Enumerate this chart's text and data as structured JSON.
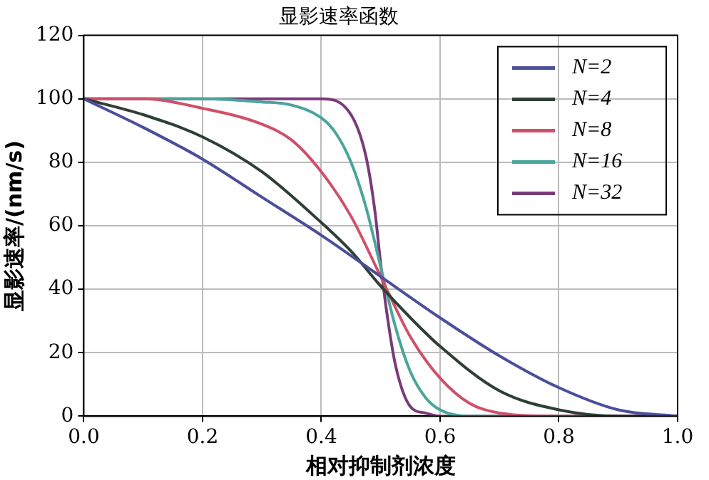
{
  "chart_data": {
    "type": "line",
    "title": "显影速率函数",
    "xlabel": "相对抑制剂浓度",
    "ylabel": "显影速率/(nm/s)",
    "xlim": [
      0,
      1
    ],
    "ylim": [
      0,
      120
    ],
    "xticks": [
      {
        "value": 0,
        "label": "0.0"
      },
      {
        "value": 0.2,
        "label": "0.2"
      },
      {
        "value": 0.4,
        "label": "0.4"
      },
      {
        "value": 0.6,
        "label": "0.6"
      },
      {
        "value": 0.8,
        "label": "0.8"
      },
      {
        "value": 1,
        "label": "1.0"
      }
    ],
    "yticks": [
      0,
      20,
      40,
      60,
      80,
      100,
      120
    ],
    "grid": true,
    "legend": "top right",
    "marker": "none",
    "line_style": "solid",
    "series": [
      {
        "name": "N=2",
        "color": "#4b4f9a",
        "x": [
          0,
          0.1,
          0.2,
          0.3,
          0.4,
          0.5,
          0.6,
          0.7,
          0.8,
          0.9,
          1
        ],
        "values": [
          100,
          91,
          81,
          69,
          57,
          44,
          31,
          19,
          9,
          2,
          0
        ]
      },
      {
        "name": "N=4",
        "color": "#2f3f35",
        "x": [
          0,
          0.1,
          0.2,
          0.3,
          0.4,
          0.45,
          0.5,
          0.55,
          0.6,
          0.7,
          0.8,
          0.9,
          1
        ],
        "values": [
          100,
          95,
          88,
          77,
          61,
          52,
          41,
          31,
          22,
          8,
          2,
          0,
          0
        ]
      },
      {
        "name": "N=8",
        "color": "#d0506a",
        "x": [
          0,
          0.1,
          0.2,
          0.3,
          0.35,
          0.4,
          0.45,
          0.5,
          0.55,
          0.6,
          0.65,
          0.7,
          0.8,
          1
        ],
        "values": [
          100,
          100,
          97,
          92,
          87,
          77,
          63,
          44,
          25,
          12,
          4,
          1,
          0,
          0
        ]
      },
      {
        "name": "N=16",
        "color": "#4aa59a",
        "x": [
          0,
          0.2,
          0.3,
          0.35,
          0.4,
          0.425,
          0.45,
          0.475,
          0.5,
          0.525,
          0.55,
          0.575,
          0.6,
          0.65,
          1
        ],
        "values": [
          100,
          100,
          99,
          98,
          94,
          89,
          80,
          66,
          47,
          28,
          14,
          6,
          2,
          0,
          0
        ]
      },
      {
        "name": "N=32",
        "color": "#7a3a7a",
        "x": [
          0,
          0.3,
          0.4,
          0.45,
          0.475,
          0.49,
          0.5,
          0.51,
          0.525,
          0.55,
          0.575,
          0.6,
          1
        ],
        "values": [
          100,
          100,
          100,
          95,
          82,
          65,
          48,
          33,
          16,
          3,
          1,
          0,
          0
        ]
      }
    ]
  }
}
